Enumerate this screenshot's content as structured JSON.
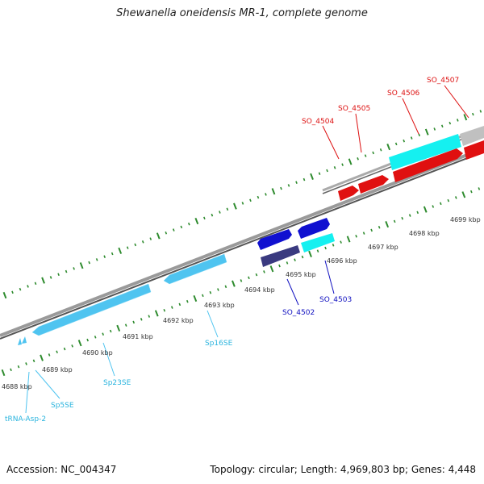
{
  "title": "Shewanella oneidensis MR-1, complete genome",
  "footer": {
    "accession": "Accession: NC_004347",
    "summary": "Topology: circular; Length: 4,969,803 bp; Genes: 4,448"
  },
  "colors": {
    "backbone": "#808080",
    "tick": "#2e8b2e",
    "rna_gene": "#4fc4f0",
    "rna_label": "#2ab4de",
    "plus_gene": "#e01010",
    "plus_label": "#dd1111",
    "minus_gene": "#1010d0",
    "minus_label": "#1010c0",
    "minus_gene_dark": "#3a3a80",
    "cyan_gene": "#15f0f0",
    "grey_gene": "#c0c0c0"
  },
  "scale": {
    "unit": "kbp",
    "ticks": [
      {
        "label": "4688 kbp",
        "kbp": 4688
      },
      {
        "label": "4689 kbp",
        "kbp": 4689
      },
      {
        "label": "4690 kbp",
        "kbp": 4690
      },
      {
        "label": "4691 kbp",
        "kbp": 4691
      },
      {
        "label": "4692 kbp",
        "kbp": 4692
      },
      {
        "label": "4693 kbp",
        "kbp": 4693
      },
      {
        "label": "4694 kbp",
        "kbp": 4694
      },
      {
        "label": "4695 kbp",
        "kbp": 4695
      },
      {
        "label": "4696 kbp",
        "kbp": 4696
      },
      {
        "label": "4697 kbp",
        "kbp": 4697
      },
      {
        "label": "4698 kbp",
        "kbp": 4698
      },
      {
        "label": "4699 kbp",
        "kbp": 4699
      }
    ]
  },
  "genes": [
    {
      "name": "tRNA-Asp-2",
      "strand": "-",
      "type": "tRNA"
    },
    {
      "name": "Sp5SE",
      "strand": "-",
      "type": "rRNA"
    },
    {
      "name": "Sp23SE",
      "strand": "-",
      "type": "rRNA"
    },
    {
      "name": "Sp16SE",
      "strand": "-",
      "type": "rRNA"
    },
    {
      "name": "SO_4502",
      "strand": "-",
      "type": "CDS"
    },
    {
      "name": "SO_4503",
      "strand": "-",
      "type": "CDS"
    },
    {
      "name": "SO_4504",
      "strand": "+",
      "type": "CDS"
    },
    {
      "name": "SO_4505",
      "strand": "+",
      "type": "CDS"
    },
    {
      "name": "SO_4506",
      "strand": "+",
      "type": "CDS"
    },
    {
      "name": "SO_4507",
      "strand": "+",
      "type": "CDS"
    }
  ]
}
